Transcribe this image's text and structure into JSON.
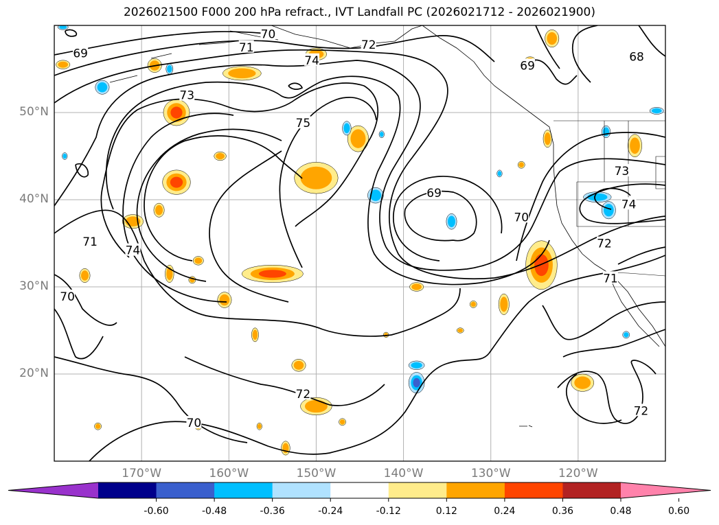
{
  "title": "2026021500 F000 200 hPa refract., IVT Landfall PC (2026021712 - 2026021900)",
  "lat_labels": [
    {
      "label": "50°N",
      "lat": 50
    },
    {
      "label": "40°N",
      "lat": 40
    },
    {
      "label": "30°N",
      "lat": 30
    },
    {
      "label": "20°N",
      "lat": 20
    }
  ],
  "lon_labels": [
    {
      "label": "170°W",
      "lon": -170
    },
    {
      "label": "160°W",
      "lon": -160
    },
    {
      "label": "150°W",
      "lon": -150
    },
    {
      "label": "140°W",
      "lon": -140
    },
    {
      "label": "130°W",
      "lon": -130
    },
    {
      "label": "120°W",
      "lon": -120
    }
  ],
  "map_extent": {
    "lon_min": -180,
    "lon_max": -110,
    "lat_min": 10,
    "lat_max": 60
  },
  "colorbar": {
    "ticks": [
      "-0.60",
      "-0.48",
      "-0.36",
      "-0.24",
      "-0.12",
      "0.12",
      "0.24",
      "0.36",
      "0.48",
      "0.60"
    ],
    "colors": [
      "#9932cc",
      "#00008b",
      "#3a5fcd",
      "#00bfff",
      "#b0e2ff",
      "#ffffff",
      "#ffec8b",
      "#ffa500",
      "#ff4500",
      "#b22222",
      "#ff82ab"
    ]
  },
  "contour_labels": [
    {
      "text": "69",
      "lon": -177,
      "lat": 56.8
    },
    {
      "text": "70",
      "lon": -155.5,
      "lat": 59
    },
    {
      "text": "71",
      "lon": -158,
      "lat": 57.5
    },
    {
      "text": "72",
      "lon": -144,
      "lat": 57.8
    },
    {
      "text": "74",
      "lon": -150.5,
      "lat": 56
    },
    {
      "text": "73",
      "lon": -164.8,
      "lat": 52
    },
    {
      "text": "75",
      "lon": -151.5,
      "lat": 48.8
    },
    {
      "text": "69",
      "lon": -136.5,
      "lat": 40.8
    },
    {
      "text": "70",
      "lon": -126.5,
      "lat": 38
    },
    {
      "text": "69",
      "lon": -125.8,
      "lat": 55.4
    },
    {
      "text": "68",
      "lon": -113.3,
      "lat": 56.4
    },
    {
      "text": "73",
      "lon": -115,
      "lat": 43.3
    },
    {
      "text": "74",
      "lon": -114.2,
      "lat": 39.5
    },
    {
      "text": "72",
      "lon": -117,
      "lat": 35
    },
    {
      "text": "71",
      "lon": -116.3,
      "lat": 31
    },
    {
      "text": "71",
      "lon": -175.9,
      "lat": 35.2
    },
    {
      "text": "74",
      "lon": -171,
      "lat": 34.2
    },
    {
      "text": "70",
      "lon": -178.5,
      "lat": 28.9
    },
    {
      "text": "72",
      "lon": -151.5,
      "lat": 17.7
    },
    {
      "text": "70",
      "lon": -164,
      "lat": 14.4
    },
    {
      "text": "72",
      "lon": -112.8,
      "lat": 15.8
    }
  ],
  "anomaly_patches": [
    {
      "sign": "pos",
      "level": 2,
      "lon": -166,
      "lat": 50,
      "rlon": 1.5,
      "rlat": 1.5
    },
    {
      "sign": "pos",
      "level": 2,
      "lon": -166,
      "lat": 42,
      "rlon": 1.6,
      "rlat": 1.4
    },
    {
      "sign": "pos",
      "level": 1,
      "lon": -158.5,
      "lat": 54.5,
      "rlon": 2.2,
      "rlat": 0.8
    },
    {
      "sign": "pos",
      "level": 1,
      "lon": -171,
      "lat": 37.5,
      "rlon": 1.2,
      "rlat": 0.8
    },
    {
      "sign": "pos",
      "level": 1,
      "lon": -168,
      "lat": 38.8,
      "rlon": 0.6,
      "rlat": 0.8
    },
    {
      "sign": "pos",
      "level": 2,
      "lon": -155,
      "lat": 31.5,
      "rlon": 3.5,
      "rlat": 1.0
    },
    {
      "sign": "pos",
      "level": 1,
      "lon": -150,
      "lat": 42.5,
      "rlon": 2.5,
      "rlat": 1.8
    },
    {
      "sign": "pos",
      "level": 1,
      "lon": -145.2,
      "lat": 47,
      "rlon": 1.2,
      "rlat": 1.5
    },
    {
      "sign": "pos",
      "level": 1,
      "lon": -150,
      "lat": 56.7,
      "rlon": 1.2,
      "rlat": 0.7
    },
    {
      "sign": "pos",
      "level": 2,
      "lon": -124.2,
      "lat": 32.5,
      "rlon": 1.8,
      "rlat": 2.8
    },
    {
      "sign": "pos",
      "level": 1,
      "lon": -128.5,
      "lat": 28,
      "rlon": 0.6,
      "rlat": 1.2
    },
    {
      "sign": "pos",
      "level": 1,
      "lon": -150,
      "lat": 16.3,
      "rlon": 1.8,
      "rlat": 1.0
    },
    {
      "sign": "pos",
      "level": 1,
      "lon": -119.5,
      "lat": 19,
      "rlon": 1.3,
      "rlat": 1.0
    },
    {
      "sign": "pos",
      "level": 1,
      "lon": -113.5,
      "lat": 46.2,
      "rlon": 0.8,
      "rlat": 1.3
    },
    {
      "sign": "pos",
      "level": 1,
      "lon": -123,
      "lat": 58.5,
      "rlon": 0.8,
      "rlat": 1.0
    },
    {
      "sign": "pos",
      "level": 1,
      "lon": -161,
      "lat": 45,
      "rlon": 0.7,
      "rlat": 0.5
    },
    {
      "sign": "pos",
      "level": 1,
      "lon": -163.5,
      "lat": 33,
      "rlon": 0.6,
      "rlat": 0.5
    },
    {
      "sign": "pos",
      "level": 1,
      "lon": -166.8,
      "lat": 31.5,
      "rlon": 0.5,
      "rlat": 1.0
    },
    {
      "sign": "pos",
      "level": 1,
      "lon": -164.2,
      "lat": 30.8,
      "rlon": 0.4,
      "rlat": 0.4
    },
    {
      "sign": "pos",
      "level": 1,
      "lon": -160.5,
      "lat": 28.5,
      "rlon": 0.8,
      "rlat": 0.9
    },
    {
      "sign": "pos",
      "level": 1,
      "lon": -176.5,
      "lat": 31.3,
      "rlon": 0.6,
      "rlat": 0.8
    },
    {
      "sign": "pos",
      "level": 1,
      "lon": -168.5,
      "lat": 55.4,
      "rlon": 0.8,
      "rlat": 0.8
    },
    {
      "sign": "pos",
      "level": 1,
      "lon": -179,
      "lat": 55.5,
      "rlon": 0.8,
      "rlat": 0.5
    },
    {
      "sign": "pos",
      "level": 1,
      "lon": -152,
      "lat": 21,
      "rlon": 0.8,
      "rlat": 0.7
    },
    {
      "sign": "pos",
      "level": 1,
      "lon": -147,
      "lat": 14.5,
      "rlon": 0.4,
      "rlat": 0.4
    },
    {
      "sign": "pos",
      "level": 1,
      "lon": -153.5,
      "lat": 11.5,
      "rlon": 0.5,
      "rlat": 0.8
    },
    {
      "sign": "pos",
      "level": 1,
      "lon": -157,
      "lat": 24.5,
      "rlon": 0.4,
      "rlat": 0.8
    },
    {
      "sign": "pos",
      "level": 1,
      "lon": -138.5,
      "lat": 30,
      "rlon": 0.8,
      "rlat": 0.5
    },
    {
      "sign": "pos",
      "level": 1,
      "lon": -132,
      "lat": 28,
      "rlon": 0.4,
      "rlat": 0.4
    },
    {
      "sign": "pos",
      "level": 1,
      "lon": -126.5,
      "lat": 44,
      "rlon": 0.4,
      "rlat": 0.4
    },
    {
      "sign": "pos",
      "level": 1,
      "lon": -123.5,
      "lat": 47,
      "rlon": 0.5,
      "rlat": 1.0
    },
    {
      "sign": "pos",
      "level": 1,
      "lon": -125.5,
      "lat": 56,
      "rlon": 0.6,
      "rlat": 0.4
    },
    {
      "sign": "pos",
      "level": 1,
      "lon": -175,
      "lat": 14,
      "rlon": 0.4,
      "rlat": 0.4
    },
    {
      "sign": "pos",
      "level": 1,
      "lon": -163.5,
      "lat": 14,
      "rlon": 0.4,
      "rlat": 0.4
    },
    {
      "sign": "pos",
      "level": 1,
      "lon": -156.5,
      "lat": 14,
      "rlon": 0.3,
      "rlat": 0.4
    },
    {
      "sign": "pos",
      "level": 1,
      "lon": -142,
      "lat": 24.5,
      "rlon": 0.3,
      "rlat": 0.3
    },
    {
      "sign": "pos",
      "level": 1,
      "lon": -133.5,
      "lat": 25,
      "rlon": 0.4,
      "rlat": 0.3
    },
    {
      "sign": "neg",
      "level": 2,
      "lon": -138.5,
      "lat": 19,
      "rlon": 0.9,
      "rlat": 1.2
    },
    {
      "sign": "neg",
      "level": 1,
      "lon": -138.5,
      "lat": 21,
      "rlon": 0.9,
      "rlat": 0.5
    },
    {
      "sign": "neg",
      "level": 1,
      "lon": -143.2,
      "lat": 40.5,
      "rlon": 0.9,
      "rlat": 0.9
    },
    {
      "sign": "neg",
      "level": 1,
      "lon": -117.8,
      "lat": 40.3,
      "rlon": 1.6,
      "rlat": 0.6
    },
    {
      "sign": "neg",
      "level": 1,
      "lon": -116.5,
      "lat": 38.8,
      "rlon": 0.8,
      "rlat": 1.0
    },
    {
      "sign": "neg",
      "level": 1,
      "lon": -146.5,
      "lat": 48.2,
      "rlon": 0.5,
      "rlat": 0.8
    },
    {
      "sign": "neg",
      "level": 1,
      "lon": -174.5,
      "lat": 52.9,
      "rlon": 0.8,
      "rlat": 0.8
    },
    {
      "sign": "neg",
      "level": 1,
      "lon": -134.5,
      "lat": 37.5,
      "rlon": 0.6,
      "rlat": 0.9
    },
    {
      "sign": "neg",
      "level": 1,
      "lon": -116.8,
      "lat": 47.8,
      "rlon": 0.5,
      "rlat": 0.7
    },
    {
      "sign": "neg",
      "level": 1,
      "lon": -111,
      "lat": 50.2,
      "rlon": 0.8,
      "rlat": 0.4
    },
    {
      "sign": "neg",
      "level": 1,
      "lon": -166.8,
      "lat": 55,
      "rlon": 0.4,
      "rlat": 0.6
    },
    {
      "sign": "neg",
      "level": 1,
      "lon": -114.5,
      "lat": 24.5,
      "rlon": 0.4,
      "rlat": 0.4
    },
    {
      "sign": "neg",
      "level": 1,
      "lon": -142.5,
      "lat": 47.5,
      "rlon": 0.3,
      "rlat": 0.4
    },
    {
      "sign": "neg",
      "level": 1,
      "lon": -129,
      "lat": 43,
      "rlon": 0.3,
      "rlat": 0.4
    },
    {
      "sign": "neg",
      "level": 1,
      "lon": -178.8,
      "lat": 45,
      "rlon": 0.3,
      "rlat": 0.4
    },
    {
      "sign": "neg",
      "level": 1,
      "lon": -179,
      "lat": 59.8,
      "rlon": 0.6,
      "rlat": 0.3
    }
  ]
}
